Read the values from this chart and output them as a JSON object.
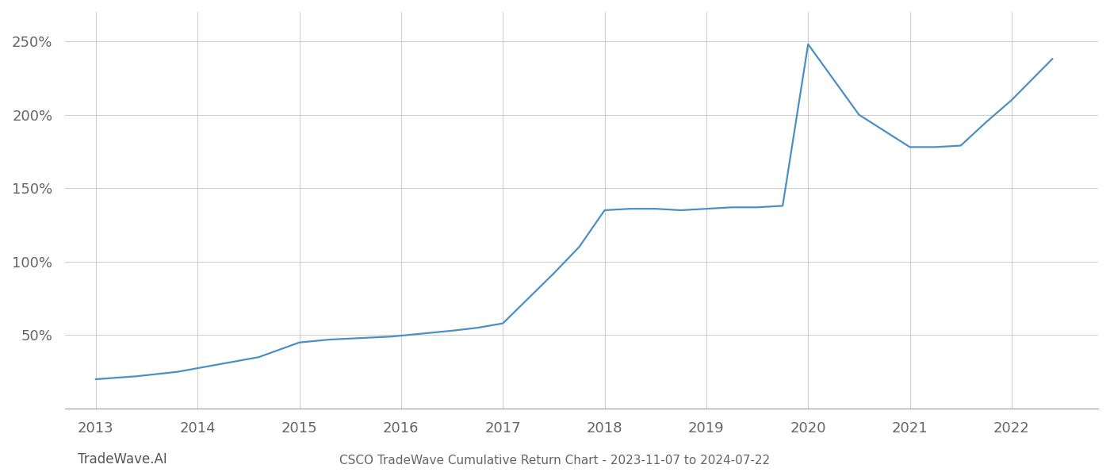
{
  "x_years": [
    2013.0,
    2013.4,
    2013.8,
    2014.2,
    2014.6,
    2015.0,
    2015.3,
    2015.6,
    2015.9,
    2016.2,
    2016.5,
    2016.75,
    2017.0,
    2017.25,
    2017.5,
    2017.75,
    2018.0,
    2018.25,
    2018.5,
    2018.75,
    2019.0,
    2019.25,
    2019.5,
    2019.75,
    2020.0,
    2020.5,
    2021.0,
    2021.25,
    2021.5,
    2021.75,
    2022.0,
    2022.4
  ],
  "y_values": [
    20,
    22,
    25,
    30,
    35,
    45,
    47,
    48,
    49,
    51,
    53,
    55,
    58,
    75,
    92,
    110,
    135,
    136,
    136,
    135,
    136,
    137,
    137,
    138,
    248,
    200,
    178,
    178,
    179,
    195,
    210,
    238
  ],
  "line_color": "#4a90c4",
  "line_width": 1.6,
  "background_color": "#ffffff",
  "grid_color": "#d0d0d0",
  "title": "CSCO TradeWave Cumulative Return Chart - 2023-11-07 to 2024-07-22",
  "title_fontsize": 11,
  "watermark": "TradeWave.AI",
  "watermark_color": "#555555",
  "watermark_fontsize": 12,
  "xlim": [
    2012.7,
    2022.85
  ],
  "ylim": [
    0,
    270
  ],
  "yticks": [
    50,
    100,
    150,
    200,
    250
  ],
  "xticks": [
    2013,
    2014,
    2015,
    2016,
    2017,
    2018,
    2019,
    2020,
    2021,
    2022
  ],
  "tick_color": "#666666",
  "tick_fontsize": 13,
  "spine_color": "#999999"
}
